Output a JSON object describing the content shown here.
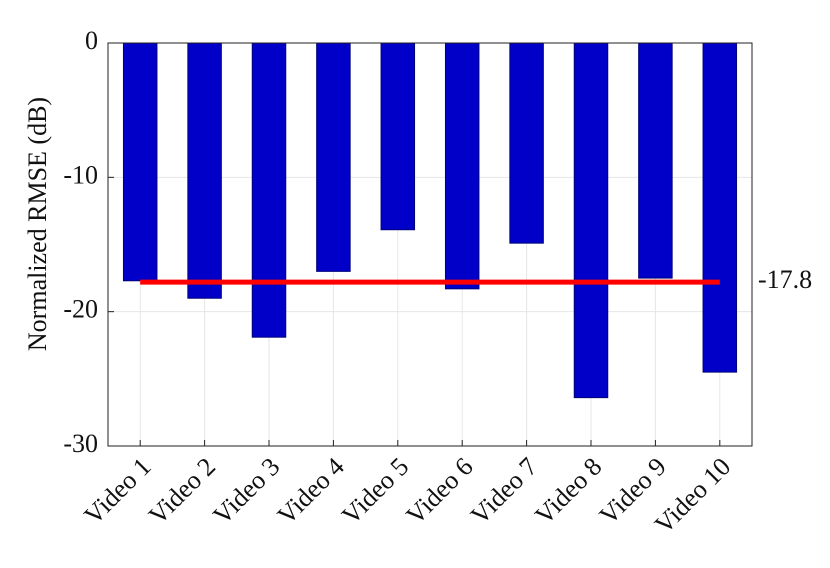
{
  "chart_data": {
    "type": "bar",
    "y_label": "Normalized RMSE (dB)",
    "categories": [
      "Video 1",
      "Video 2",
      "Video 3",
      "Video 4",
      "Video 5",
      "Video 6",
      "Video 7",
      "Video 8",
      "Video 9",
      "Video 10"
    ],
    "values": [
      -17.7,
      -19.0,
      -21.9,
      -17.0,
      -13.9,
      -18.3,
      -14.9,
      -26.4,
      -17.5,
      -24.5
    ],
    "color": "#0000c8",
    "edge_color": "#00007a",
    "reference_value": -17.8,
    "reference_color": "#ff0000",
    "ylim": [
      -30,
      0
    ],
    "yticks": [
      0,
      -10,
      -20,
      -30
    ],
    "grid": true
  }
}
